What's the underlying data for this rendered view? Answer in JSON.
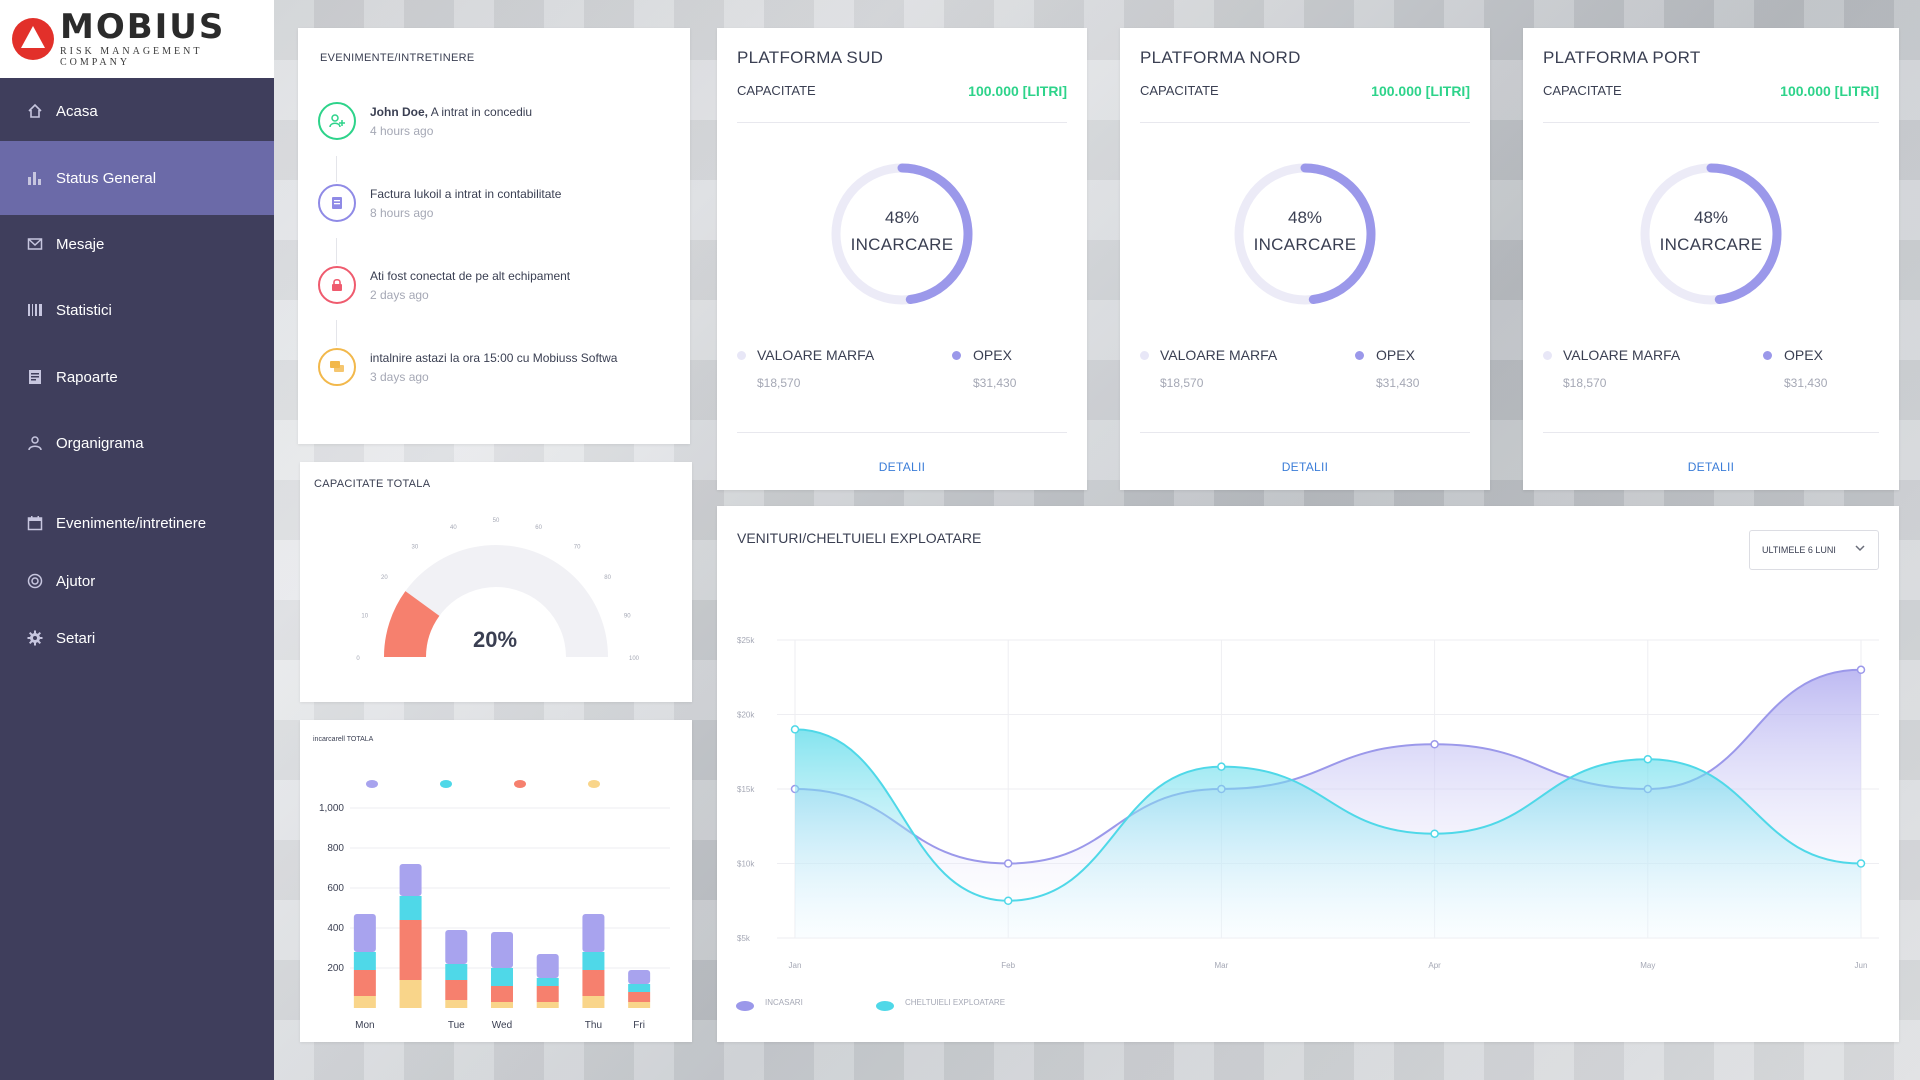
{
  "logo": {
    "name": "MOBIUS",
    "subtitle": "RISK MANAGEMENT COMPANY"
  },
  "nav": [
    {
      "label": "Acasa",
      "icon": "home-icon"
    },
    {
      "label": "Status General",
      "icon": "bar-chart-icon",
      "active": true
    },
    {
      "label": "Mesaje",
      "icon": "mail-icon"
    },
    {
      "label": "Statistici",
      "icon": "barcode-icon"
    },
    {
      "label": "Rapoarte",
      "icon": "report-icon"
    },
    {
      "label": "Organigrama",
      "icon": "user-icon"
    },
    {
      "label": "Evenimente/intretinere",
      "icon": "calendar-icon"
    },
    {
      "label": "Ajutor",
      "icon": "help-icon"
    },
    {
      "label": "Setari",
      "icon": "gear-icon"
    }
  ],
  "events": {
    "title": "EVENIMENTE/INTRETINERE",
    "items": [
      {
        "who": "John Doe,",
        "text": " A intrat in concediu",
        "time": "4 hours ago",
        "icon": "user-add-icon",
        "color": "#2dd38a"
      },
      {
        "who": "",
        "text": "Factura lukoil a intrat in contabilitate",
        "time": "8 hours ago",
        "icon": "receipt-icon",
        "color": "#8f8ae6"
      },
      {
        "who": "",
        "text": "Ati fost conectat de pe alt echipament",
        "time": "2 days ago",
        "icon": "lock-icon",
        "color": "#ef5b6e"
      },
      {
        "who": "",
        "text": "intalnire astazi la ora 15:00 cu Mobiuss Softwa",
        "time": "3 days ago",
        "icon": "chat-icon",
        "color": "#f2b84b"
      }
    ]
  },
  "capacity": {
    "title": "CAPACITATE TOTALA",
    "value_label": "20%",
    "value": 20,
    "ticks": [
      "0",
      "10",
      "20",
      "30",
      "40",
      "50",
      "60",
      "70",
      "80",
      "90",
      "100"
    ]
  },
  "platforms": [
    {
      "title": "PLATFORMA SUD",
      "cap_label": "CAPACITATE",
      "cap_value": "100.000 [LITRI]",
      "pct": "48%",
      "pct_value": 48,
      "load_label": "INCARCARE",
      "legend": [
        {
          "name": "VALOARE MARFA",
          "value": "$18,570",
          "color": "#e8e7f7"
        },
        {
          "name": "OPEX",
          "value": "$31,430",
          "color": "#9b98ea"
        }
      ],
      "details": "DETALII"
    },
    {
      "title": "PLATFORMA NORD",
      "cap_label": "CAPACITATE",
      "cap_value": "100.000 [LITRI]",
      "pct": "48%",
      "pct_value": 48,
      "load_label": "INCARCARE",
      "legend": [
        {
          "name": "VALOARE MARFA",
          "value": "$18,570",
          "color": "#e8e7f7"
        },
        {
          "name": "OPEX",
          "value": "$31,430",
          "color": "#9b98ea"
        }
      ],
      "details": "DETALII"
    },
    {
      "title": "PLATFORMA PORT",
      "cap_label": "CAPACITATE",
      "cap_value": "100.000 [LITRI]",
      "pct": "48%",
      "pct_value": 48,
      "load_label": "INCARCARE",
      "legend": [
        {
          "name": "VALOARE MARFA",
          "value": "$18,570",
          "color": "#e8e7f7"
        },
        {
          "name": "OPEX",
          "value": "$31,430",
          "color": "#9b98ea"
        }
      ],
      "details": "DETALII"
    }
  ],
  "revenue": {
    "title": "VENITURI/CHELTUIELI EXPLOATARE",
    "period": "ULTIMELE 6 LUNI"
  },
  "loads": {
    "title": "incarcarell TOTALA"
  },
  "chart_data": [
    {
      "type": "area",
      "categories": [
        "Jan",
        "Feb",
        "Mar",
        "Apr",
        "May",
        "Jun"
      ],
      "y_ticks": [
        "$5k",
        "$10k",
        "$15k",
        "$20k",
        "$25k"
      ],
      "ylim": [
        5,
        25
      ],
      "series": [
        {
          "name": "INCASARI",
          "values": [
            15,
            10,
            15,
            18,
            15,
            23
          ],
          "color": "#9b98ea"
        },
        {
          "name": "CHELTUIELI EXPLOATARE",
          "values": [
            19,
            7.5,
            16.5,
            12,
            17,
            10
          ],
          "color": "#4fd8e8"
        }
      ],
      "grid": true,
      "legend_position": "bottom-left"
    },
    {
      "type": "bar",
      "stacked": true,
      "categories": [
        "Mon",
        "Tue",
        "Wed",
        "Thu",
        "Fri"
      ],
      "groups": [
        {
          "categories": [
            "Mon"
          ],
          "values": []
        }
      ],
      "columns": [
        {
          "day": "Mon",
          "segments": [
            60,
            130,
            90,
            190
          ]
        },
        {
          "day": "",
          "segments": [
            140,
            300,
            120,
            160
          ]
        },
        {
          "day": "Tue",
          "segments": [
            40,
            100,
            80,
            170
          ]
        },
        {
          "day": "Wed",
          "segments": [
            30,
            80,
            90,
            180
          ]
        },
        {
          "day": "",
          "segments": [
            30,
            80,
            40,
            120
          ]
        },
        {
          "day": "Thu",
          "segments": [
            60,
            130,
            90,
            190
          ]
        },
        {
          "day": "Fri",
          "segments": [
            30,
            50,
            40,
            70
          ]
        }
      ],
      "segment_colors": [
        "#f9d58a",
        "#f6806e",
        "#4fd8e8",
        "#a8a3ee"
      ],
      "y_ticks": [
        "200",
        "400",
        "600",
        "800",
        "1,000"
      ],
      "ylim": [
        0,
        1000
      ],
      "legend": [
        "",
        "",
        "",
        ""
      ]
    }
  ]
}
